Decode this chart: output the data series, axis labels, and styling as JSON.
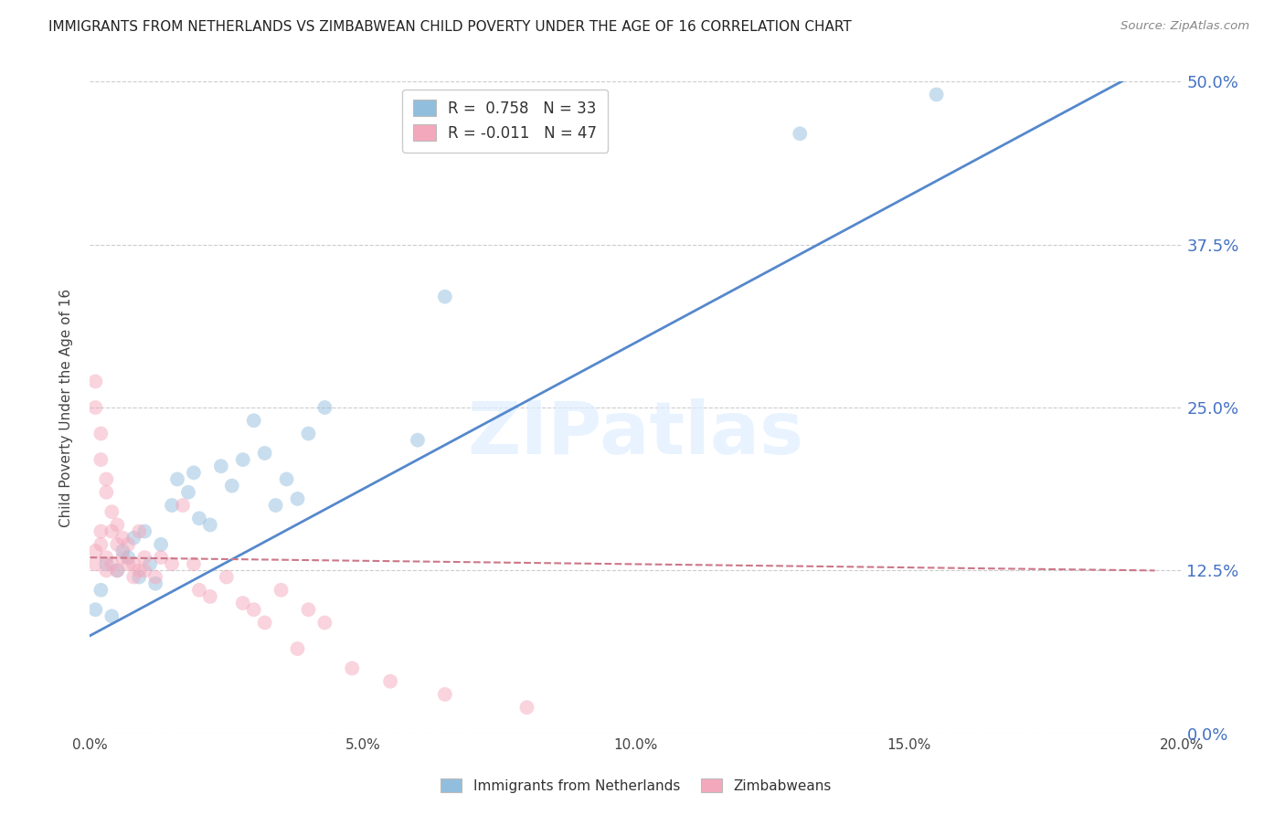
{
  "title": "IMMIGRANTS FROM NETHERLANDS VS ZIMBABWEAN CHILD POVERTY UNDER THE AGE OF 16 CORRELATION CHART",
  "source": "Source: ZipAtlas.com",
  "ylabel": "Child Poverty Under the Age of 16",
  "xlim": [
    0.0,
    0.2
  ],
  "ylim": [
    0.0,
    0.5
  ],
  "x_tick_vals": [
    0.0,
    0.05,
    0.1,
    0.15,
    0.2
  ],
  "x_tick_labels": [
    "0.0%",
    "5.0%",
    "10.0%",
    "15.0%",
    "20.0%"
  ],
  "y_tick_vals": [
    0.0,
    0.125,
    0.25,
    0.375,
    0.5
  ],
  "y_tick_labels": [
    "0.0%",
    "12.5%",
    "25.0%",
    "37.5%",
    "50.0%"
  ],
  "legend_line1": "R =  0.758   N = 33",
  "legend_line2": "R = -0.011   N = 47",
  "legend_label1": "Immigrants from Netherlands",
  "legend_label2": "Zimbabweans",
  "blue_scatter_x": [
    0.001,
    0.002,
    0.003,
    0.004,
    0.005,
    0.006,
    0.007,
    0.008,
    0.009,
    0.01,
    0.011,
    0.012,
    0.013,
    0.015,
    0.016,
    0.018,
    0.019,
    0.02,
    0.022,
    0.024,
    0.026,
    0.028,
    0.03,
    0.032,
    0.034,
    0.036,
    0.038,
    0.04,
    0.043,
    0.06,
    0.065,
    0.13,
    0.155
  ],
  "blue_scatter_y": [
    0.095,
    0.11,
    0.13,
    0.09,
    0.125,
    0.14,
    0.135,
    0.15,
    0.12,
    0.155,
    0.13,
    0.115,
    0.145,
    0.175,
    0.195,
    0.185,
    0.2,
    0.165,
    0.16,
    0.205,
    0.19,
    0.21,
    0.24,
    0.215,
    0.175,
    0.195,
    0.18,
    0.23,
    0.25,
    0.225,
    0.335,
    0.46,
    0.49
  ],
  "pink_scatter_x": [
    0.001,
    0.001,
    0.001,
    0.001,
    0.002,
    0.002,
    0.002,
    0.002,
    0.003,
    0.003,
    0.003,
    0.003,
    0.004,
    0.004,
    0.004,
    0.005,
    0.005,
    0.005,
    0.006,
    0.006,
    0.007,
    0.007,
    0.008,
    0.008,
    0.009,
    0.009,
    0.01,
    0.01,
    0.012,
    0.013,
    0.015,
    0.017,
    0.019,
    0.02,
    0.022,
    0.025,
    0.028,
    0.03,
    0.032,
    0.035,
    0.038,
    0.04,
    0.043,
    0.048,
    0.055,
    0.065,
    0.08
  ],
  "pink_scatter_y": [
    0.27,
    0.25,
    0.14,
    0.13,
    0.23,
    0.21,
    0.155,
    0.145,
    0.195,
    0.185,
    0.135,
    0.125,
    0.17,
    0.155,
    0.13,
    0.16,
    0.145,
    0.125,
    0.15,
    0.135,
    0.145,
    0.13,
    0.13,
    0.12,
    0.155,
    0.125,
    0.135,
    0.125,
    0.12,
    0.135,
    0.13,
    0.175,
    0.13,
    0.11,
    0.105,
    0.12,
    0.1,
    0.095,
    0.085,
    0.11,
    0.065,
    0.095,
    0.085,
    0.05,
    0.04,
    0.03,
    0.02
  ],
  "blue_line_x": [
    0.0,
    0.2
  ],
  "blue_line_y": [
    0.075,
    0.525
  ],
  "pink_line_x": [
    0.0,
    0.195
  ],
  "pink_line_y": [
    0.135,
    0.125
  ],
  "scatter_size": 130,
  "scatter_alpha": 0.5,
  "background_color": "#ffffff",
  "grid_color": "#cccccc",
  "title_color": "#222222",
  "blue_scatter_color": "#92bede",
  "pink_scatter_color": "#f4a8bc",
  "blue_line_color": "#5588cc",
  "pink_line_color": "#cc7788",
  "right_tick_color": "#4472c4",
  "bottom_tick_color": "#444444",
  "watermark": "ZIPatlas",
  "watermark_color": "#ddeeff",
  "watermark_alpha": 0.65
}
